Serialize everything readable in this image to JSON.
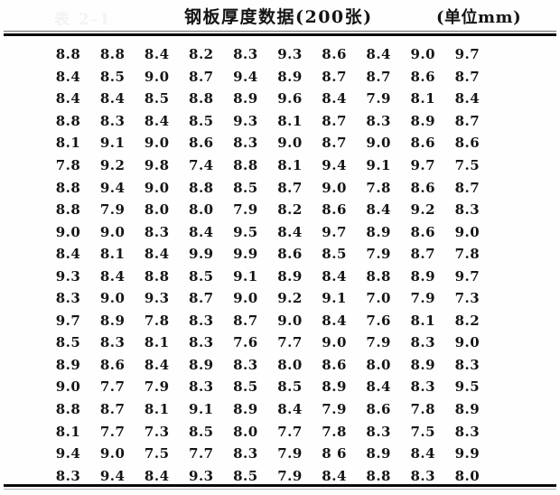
{
  "header": {
    "ghost_label": "表 2-1",
    "title": "钢板厚度数据(200张)",
    "unit_label": "(单位mm)"
  },
  "chart_data": {
    "type": "table",
    "title": "钢板厚度数据(200张)",
    "unit": "(单位mm)",
    "rows": [
      [
        "8.8",
        "8.8",
        "8.4",
        "8.2",
        "8.3",
        "9.3",
        "8.6",
        "8.4",
        "9.0",
        "9.7"
      ],
      [
        "8.4",
        "8.5",
        "9.0",
        "8.7",
        "9.4",
        "8.9",
        "8.7",
        "8.7",
        "8.6",
        "8.7"
      ],
      [
        "8.4",
        "8.4",
        "8.5",
        "8.8",
        "8.9",
        "9.6",
        "8.4",
        "7.9",
        "8.1",
        "8.4"
      ],
      [
        "8.8",
        "8.3",
        "8.4",
        "8.5",
        "9.3",
        "8.1",
        "8.7",
        "8.3",
        "8.9",
        "8.7"
      ],
      [
        "8.1",
        "9.1",
        "9.0",
        "8.6",
        "8.3",
        "9.0",
        "8.7",
        "9.0",
        "8.6",
        "8.6"
      ],
      [
        "7.8",
        "9.2",
        "9.8",
        "7.4",
        "8.8",
        "8.1",
        "9.4",
        "9.1",
        "9.7",
        "7.5"
      ],
      [
        "8.8",
        "9.4",
        "9.0",
        "8.8",
        "8.5",
        "8.7",
        "9.0",
        "7.8",
        "8.6",
        "8.7"
      ],
      [
        "8.8",
        "7.9",
        "8.0",
        "8.0",
        "7.9",
        "8.2",
        "8.6",
        "8.4",
        "9.2",
        "8.3"
      ],
      [
        "9.0",
        "9.0",
        "8.3",
        "8.4",
        "9.5",
        "8.4",
        "9.7",
        "8.9",
        "8.6",
        "9.0"
      ],
      [
        "8.4",
        "8.1",
        "8.4",
        "9.9",
        "9.9",
        "8.6",
        "8.5",
        "7.9",
        "8.7",
        "7.8"
      ],
      [
        "9.3",
        "8.4",
        "8.8",
        "8.5",
        "9.1",
        "8.9",
        "8.4",
        "8.8",
        "8.9",
        "9.7"
      ],
      [
        "8.3",
        "9.0",
        "9.3",
        "8.7",
        "9.0",
        "9.2",
        "9.1",
        "7.0",
        "7.9",
        "7.3"
      ],
      [
        "9.7",
        "8.9",
        "7.8",
        "8.3",
        "8.7",
        "9.0",
        "8.4",
        "7.6",
        "8.1",
        "8.2"
      ],
      [
        "8.5",
        "8.3",
        "8.1",
        "8.3",
        "7.6",
        "7.7",
        "9.0",
        "7.9",
        "8.3",
        "9.0"
      ],
      [
        "8.9",
        "8.6",
        "8.4",
        "8.9",
        "8.3",
        "8.0",
        "8.6",
        "8.0",
        "8.9",
        "8.3"
      ],
      [
        "9.0",
        "7.7",
        "7.9",
        "8.3",
        "8.5",
        "8.5",
        "8.9",
        "8.4",
        "8.3",
        "9.5"
      ],
      [
        "8.8",
        "8.7",
        "8.1",
        "9.1",
        "8.9",
        "8.4",
        "7.9",
        "8.6",
        "7.8",
        "8.9"
      ],
      [
        "8.1",
        "7.7",
        "7.3",
        "8.5",
        "8.0",
        "7.7",
        "7.8",
        "8.3",
        "7.5",
        "8.3"
      ],
      [
        "9.4",
        "9.0",
        "7.5",
        "7.7",
        "8.3",
        "7.9",
        "8 6",
        "8.9",
        "8.4",
        "9.9"
      ],
      [
        "8.3",
        "9.4",
        "8.4",
        "9.3",
        "8.5",
        "7.9",
        "8.4",
        "8.8",
        "8.3",
        "8.0"
      ]
    ]
  }
}
